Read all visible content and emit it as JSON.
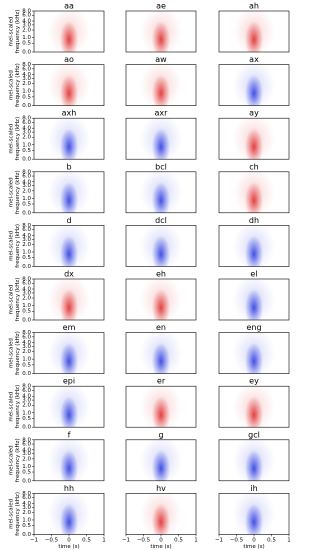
{
  "chart_data": {
    "type": "heatmap",
    "panels": [
      {
        "title": "aa",
        "color": "#e03030"
      },
      {
        "title": "ae",
        "color": "#e03030"
      },
      {
        "title": "ah",
        "color": "#e03030"
      },
      {
        "title": "ao",
        "color": "#e03030"
      },
      {
        "title": "aw",
        "color": "#e03030"
      },
      {
        "title": "ax",
        "color": "#3040e0"
      },
      {
        "title": "axh",
        "color": "#3040e0"
      },
      {
        "title": "axr",
        "color": "#3040e0"
      },
      {
        "title": "ay",
        "color": "#e03030"
      },
      {
        "title": "b",
        "color": "#3040e0"
      },
      {
        "title": "bcl",
        "color": "#3040e0"
      },
      {
        "title": "ch",
        "color": "#e03030"
      },
      {
        "title": "d",
        "color": "#3040e0"
      },
      {
        "title": "dcl",
        "color": "#3040e0"
      },
      {
        "title": "dh",
        "color": "#3040e0"
      },
      {
        "title": "dx",
        "color": "#e03030"
      },
      {
        "title": "eh",
        "color": "#e03030"
      },
      {
        "title": "el",
        "color": "#3040e0"
      },
      {
        "title": "em",
        "color": "#3040e0"
      },
      {
        "title": "en",
        "color": "#3040e0"
      },
      {
        "title": "eng",
        "color": "#3040e0"
      },
      {
        "title": "epi",
        "color": "#3040e0"
      },
      {
        "title": "er",
        "color": "#e03030"
      },
      {
        "title": "ey",
        "color": "#e03030"
      },
      {
        "title": "f",
        "color": "#3040e0"
      },
      {
        "title": "g",
        "color": "#3040e0"
      },
      {
        "title": "gcl",
        "color": "#3040e0"
      },
      {
        "title": "hh",
        "color": "#3040e0"
      },
      {
        "title": "hv",
        "color": "#e03030"
      },
      {
        "title": "ih",
        "color": "#3040e0"
      }
    ],
    "columns": 3,
    "ylabel": [
      "mel-scaled",
      "frequency (kHz)"
    ],
    "xlabel": "time (s)",
    "yscale": "mel",
    "ylim": [
      0,
      8
    ],
    "yticks": [
      {
        "value": 0,
        "label": "0.0"
      },
      {
        "value": 0.5,
        "label": "0.5"
      },
      {
        "value": 1,
        "label": "1.0"
      },
      {
        "value": 2,
        "label": "2.0"
      },
      {
        "value": 3,
        "label": "3.0"
      },
      {
        "value": 4,
        "label": "4.0"
      },
      {
        "value": 6,
        "label": "6.0"
      },
      {
        "value": 8,
        "label": "8.0"
      }
    ],
    "xlim": [
      -1,
      1
    ],
    "xticks": [
      {
        "value": -1,
        "label": "−1"
      },
      {
        "value": -0.5,
        "label": "−0.5"
      },
      0,
      0.5,
      1
    ]
  }
}
